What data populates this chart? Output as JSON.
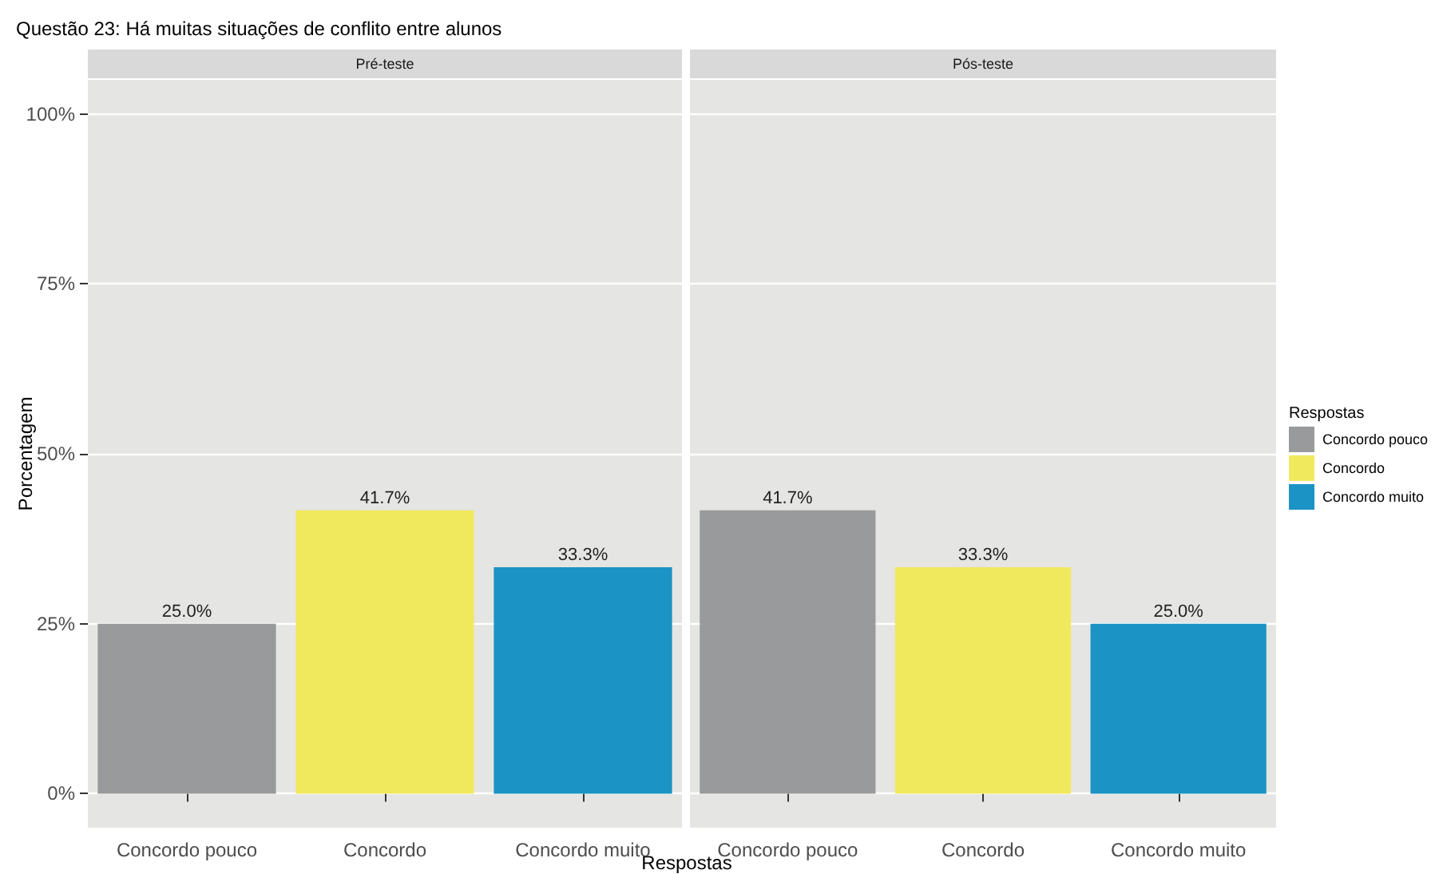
{
  "chart_data": [
    {
      "type": "bar",
      "title": "Questão 23: Há muitas situações de conflito entre alunos",
      "subtitle": "Pré-teste",
      "xlabel": "Respostas",
      "ylabel": "Porcentagem",
      "categories": [
        "Concordo pouco",
        "Concordo",
        "Concordo muito"
      ],
      "series": [
        {
          "color": "#999a9b",
          "values": [
            25.0,
            null,
            null
          ],
          "value_labels": [
            "25.0%",
            null,
            null
          ]
        },
        {
          "color": "#f0e95e",
          "values": [
            null,
            41.7,
            null
          ],
          "value_labels": [
            null,
            "41.7%",
            null
          ]
        },
        {
          "color": "#1b93c4",
          "values": [
            null,
            null,
            33.3
          ],
          "value_labels": [
            null,
            null,
            "33.3%"
          ]
        }
      ],
      "ylim": [
        -5,
        105
      ],
      "yticks": [
        {
          "value": 0,
          "label": "0%"
        },
        {
          "value": 25,
          "label": "25%"
        },
        {
          "value": 50,
          "label": "50%"
        },
        {
          "value": 75,
          "label": "75%"
        },
        {
          "value": 100,
          "label": "100%"
        }
      ],
      "grid": "y"
    },
    {
      "type": "bar",
      "subtitle": "Pós-teste",
      "legend_title": "Respostas",
      "legend": "right",
      "categories": [
        "Concordo pouco",
        "Concordo",
        "Concordo muito"
      ],
      "series": [
        {
          "name": "Concordo pouco",
          "color": "#999a9b",
          "values": [
            41.7,
            null,
            null
          ],
          "value_labels": [
            "41.7%",
            null,
            null
          ]
        },
        {
          "name": "Concordo",
          "color": "#f0e95e",
          "values": [
            null,
            33.3,
            null
          ],
          "value_labels": [
            null,
            "33.3%",
            null
          ]
        },
        {
          "name": "Concordo muito",
          "color": "#1b93c4",
          "values": [
            null,
            null,
            25.0
          ],
          "value_labels": [
            null,
            null,
            "25.0%"
          ]
        }
      ],
      "ylim": [
        -5,
        105
      ],
      "yticks": [
        0,
        25,
        50,
        75,
        100
      ],
      "grid": "y",
      "tick_labels": "x"
    }
  ]
}
